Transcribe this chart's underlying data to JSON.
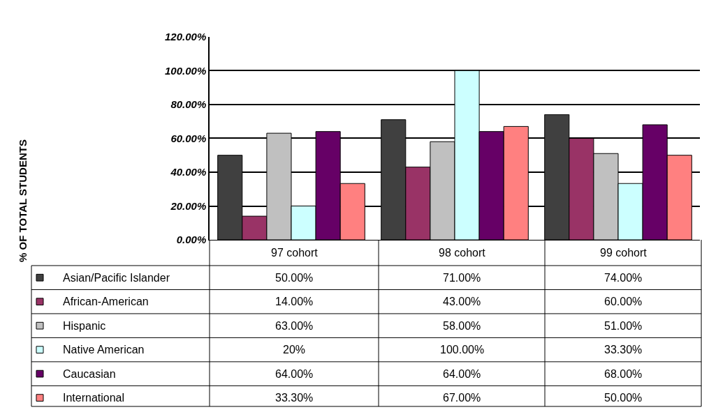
{
  "chart_data": {
    "type": "bar",
    "annotations": [
      "% OF TOTAL STUDENTS"
    ],
    "legend": "bottom left",
    "categories": [
      "97 cohort",
      "98 cohort",
      "99 cohort"
    ],
    "series": [
      {
        "name": "Asian/Pacific Islander",
        "color": "#404040",
        "values": [
          50,
          71,
          74
        ],
        "value_labels": [
          "50.00%",
          "71.00%",
          "74.00%"
        ]
      },
      {
        "name": "African-American",
        "color": "#993366",
        "values": [
          14,
          43,
          60
        ],
        "value_labels": [
          "14.00%",
          "43.00%",
          "60.00%"
        ]
      },
      {
        "name": "Hispanic",
        "color": "#c0c0c0",
        "values": [
          63,
          58,
          51
        ],
        "value_labels": [
          "63.00%",
          "58.00%",
          "51.00%"
        ]
      },
      {
        "name": "Native American",
        "color": "#ccffff",
        "values": [
          20,
          100,
          33.3
        ],
        "value_labels": [
          "20%",
          "100.00%",
          "33.30%"
        ]
      },
      {
        "name": "Caucasian",
        "color": "#660066",
        "values": [
          64,
          64,
          68
        ],
        "value_labels": [
          "64.00%",
          "64.00%",
          "68.00%"
        ]
      },
      {
        "name": "International",
        "color": "#ff8080",
        "values": [
          33.3,
          67,
          50
        ],
        "value_labels": [
          "33.30%",
          "67.00%",
          "50.00%"
        ]
      }
    ],
    "ylim": [
      0,
      120
    ],
    "yticks": [
      {
        "value": 0,
        "label": "0.00%"
      },
      {
        "value": 20,
        "label": "20.00%"
      },
      {
        "value": 40,
        "label": "40.00%"
      },
      {
        "value": 60,
        "label": "60.00%"
      },
      {
        "value": 80,
        "label": "80.00%"
      },
      {
        "value": 100,
        "label": "100.00%"
      },
      {
        "value": 120,
        "label": "120.00%"
      }
    ],
    "grid": "y"
  }
}
